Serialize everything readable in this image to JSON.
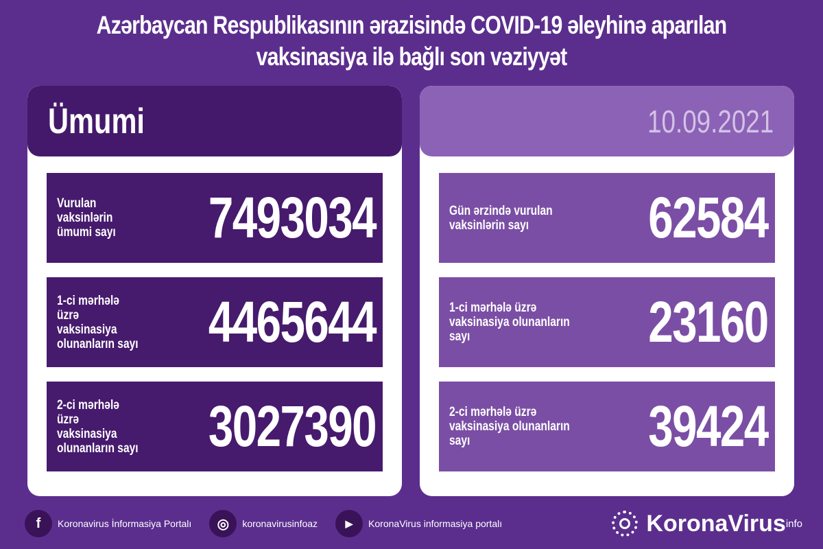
{
  "title": {
    "line1": "Azərbaycan Respublikasının ərazisində COVID-19 əleyhinə aparılan",
    "line2": "vaksinasiya ilə bağlı son vəziyyət"
  },
  "left": {
    "header": "Ümumi",
    "items": [
      {
        "label1": "Vurulan vaksinlərin",
        "label2": "ümumi sayı",
        "value": "7493034"
      },
      {
        "label1": "1-ci mərhələ üzrə",
        "label2": "vaksinasiya olunanların sayı",
        "value": "4465644"
      },
      {
        "label1": "2-ci mərhələ üzrə",
        "label2": "vaksinasiya olunanların sayı",
        "value": "3027390"
      }
    ]
  },
  "right": {
    "header": "10.09.2021",
    "items": [
      {
        "label1": "Gün ərzində vurulan",
        "label2": "vaksinlərin sayı",
        "value": "62584"
      },
      {
        "label1": "1-ci mərhələ üzrə",
        "label2": "vaksinasiya olunanların sayı",
        "value": "23160"
      },
      {
        "label1": "2-ci mərhələ üzrə",
        "label2": "vaksinasiya olunanların sayı",
        "value": "39424"
      }
    ]
  },
  "footer": {
    "facebook": "Koronavirus İnformasiya Portalı",
    "instagram": "koronavirusinfoaz",
    "youtube": "KoronaVirus informasiya portalı",
    "logo": "KoronaVirus",
    "logo_sup": "info"
  },
  "colors": {
    "background": "#5b2e8e",
    "dark_box": "#461a6d",
    "light_box": "#7b4ea5"
  }
}
